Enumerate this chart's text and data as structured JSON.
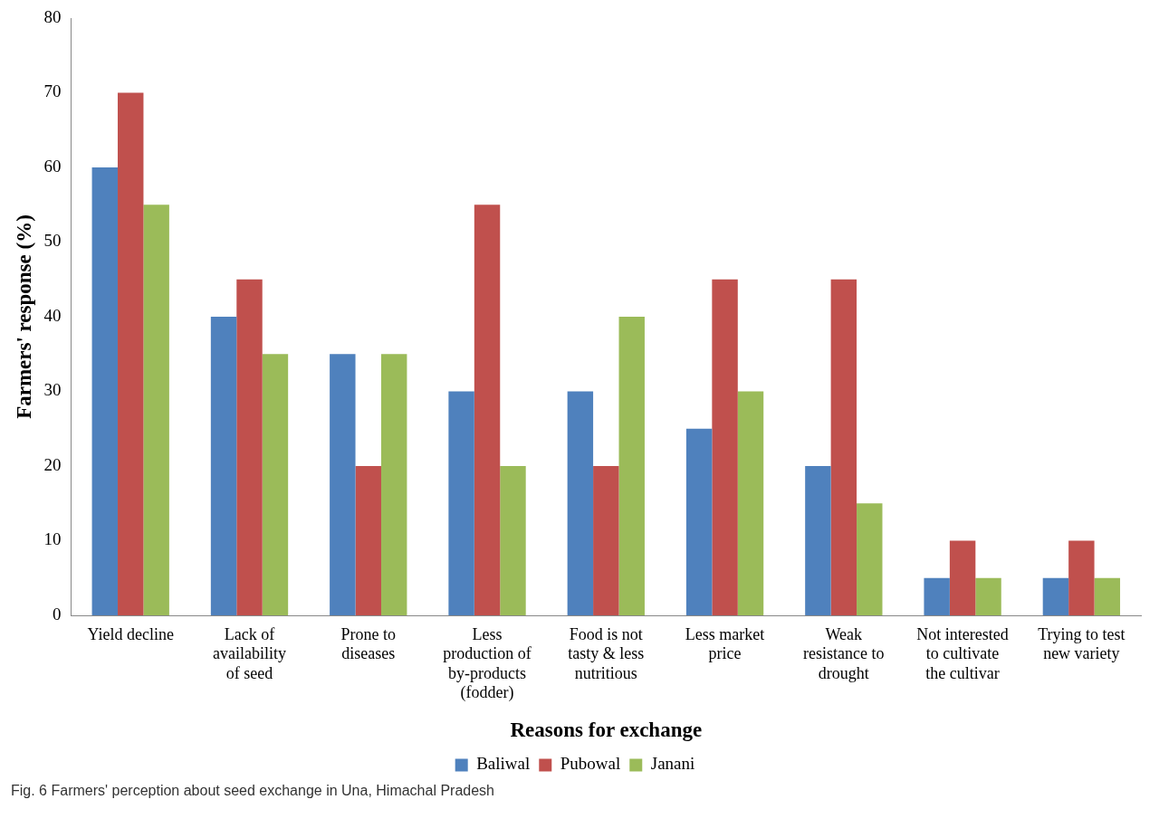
{
  "chart_data": {
    "type": "bar",
    "xlabel": "Reasons for exchange",
    "ylabel": "Farmers' response (%)",
    "categories": [
      "Yield decline",
      "Lack of availability of seed",
      "Prone to diseases",
      "Less production of by-products (fodder)",
      "Food is not tasty & less nutritious",
      "Less market price",
      "Weak resistance to drought",
      "Not interested to cultivate the cultivar",
      "Trying to test new variety"
    ],
    "series": [
      {
        "name": "Baliwal",
        "color": "#4f81bd",
        "values": [
          60,
          40,
          35,
          30,
          30,
          25,
          20,
          5,
          5
        ]
      },
      {
        "name": "Pubowal",
        "color": "#c0504d",
        "values": [
          70,
          45,
          20,
          55,
          20,
          45,
          45,
          10,
          10
        ]
      },
      {
        "name": "Janani",
        "color": "#9bbb59",
        "values": [
          55,
          35,
          35,
          20,
          40,
          30,
          15,
          5,
          5
        ]
      }
    ],
    "ylim": [
      0,
      80
    ],
    "yticks": [
      0,
      10,
      20,
      30,
      40,
      50,
      60,
      70,
      80
    ],
    "grid": false,
    "legend": "bottom",
    "annotations": [
      "Fig. 6  Farmers' perception about seed exchange in Una, Himachal Pradesh"
    ]
  }
}
